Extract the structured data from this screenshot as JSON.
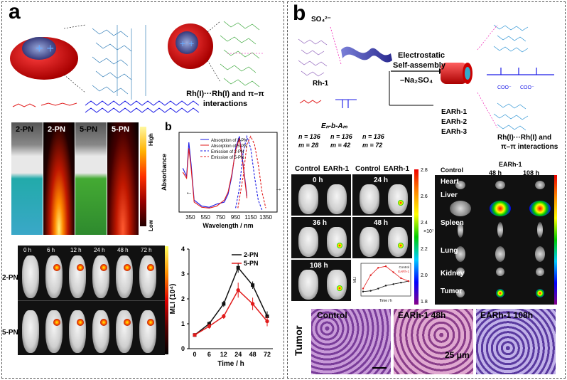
{
  "panels": {
    "a": {
      "label": "a",
      "interaction_text": "Rh(I)···Rh(I) and π–π interactions",
      "vials": [
        "2-PN",
        "2-PN",
        "5-PN",
        "5-PN"
      ],
      "colorbar": {
        "high": "High",
        "low": "Low"
      },
      "mouse_times": [
        "0 h",
        "6 h",
        "12 h",
        "24 h",
        "48 h",
        "72 h"
      ],
      "mouse_rows": [
        "2-PN",
        "5-PN"
      ]
    },
    "b_inner": {
      "label": "b",
      "legend": [
        "Absorption of 2-PN",
        "Absorption of 5-PN",
        "Emission of 2-PN",
        "Emission of 5-PN"
      ],
      "arrow_left": "←",
      "arrow_right": "→"
    },
    "b": {
      "label": "b",
      "rh": "Rh-1",
      "so4": "SO₄²⁻",
      "arrow_top": "Electrostatic",
      "arrow_mid": "Self-assembly",
      "arrow_bottom": "–Na₂SO₄",
      "polymer": "Eₙ-b-Aₘ",
      "n_vals": [
        "n = 136",
        "n = 136",
        "n = 136"
      ],
      "m_vals": [
        "m = 28",
        "m = 42",
        "m = 72"
      ],
      "products": [
        "EARh-1",
        "EARh-2",
        "EARh-3"
      ],
      "interaction_text_1": "Rh(I)···Rh(I) and",
      "interaction_text_2": "π–π interactions",
      "img_headers": [
        "Control",
        "EARh-1",
        "Control",
        "EARh-1"
      ],
      "img_times": [
        "0 h",
        "24 h",
        "36 h",
        "48 h",
        "108 h"
      ],
      "cbar_ticks": [
        "2.8",
        "2.6",
        "2.4",
        "2.2",
        "2.0",
        "1.8"
      ],
      "cbar_unit": "×10⁷",
      "organ_headers": [
        "Control",
        "48 h",
        "108 h"
      ],
      "organ_group": "EARh-1",
      "organs": [
        "Heart",
        "Liver",
        "Spleen",
        "Lung",
        "Kidney",
        "Tumor"
      ],
      "hist_labels": [
        "Control",
        "EARh-1 48h",
        "EARh-1 108h"
      ],
      "tumor_label": "Tumor",
      "scale": "25 μm",
      "inset_legend": [
        "Control",
        "EARh-1"
      ]
    }
  },
  "chart_data": [
    {
      "type": "line",
      "title": "",
      "xlabel": "Wavelength / nm",
      "ylabel": "Absorbance",
      "xlim": [
        200,
        1500
      ],
      "x_ticks": [
        350,
        550,
        750,
        950,
        1150,
        1350
      ],
      "series": [
        {
          "name": "Absorption of 2-PN",
          "style": "solid",
          "color": "#1a1ae6",
          "x": [
            250,
            300,
            330,
            360,
            400,
            500,
            600,
            700,
            800,
            850,
            900,
            950,
            1000,
            1050,
            1100
          ],
          "y": [
            1.1,
            0.9,
            1.75,
            1.2,
            0.3,
            0.15,
            0.12,
            0.2,
            0.25,
            0.45,
            0.9,
            1.6,
            1.9,
            1.2,
            0.4
          ]
        },
        {
          "name": "Absorption of 5-PN",
          "style": "solid",
          "color": "#e11b1b",
          "x": [
            250,
            300,
            330,
            360,
            400,
            500,
            600,
            700,
            800,
            850,
            900,
            950,
            1000,
            1050,
            1100
          ],
          "y": [
            1.0,
            0.85,
            1.6,
            1.1,
            0.25,
            0.12,
            0.1,
            0.15,
            0.3,
            0.5,
            0.95,
            1.55,
            1.85,
            1.15,
            0.35
          ]
        },
        {
          "name": "Emission of 2-PN",
          "style": "dashed",
          "color": "#1a1ae6",
          "x": [
            950,
            1000,
            1050,
            1100,
            1150,
            1200,
            1250,
            1300
          ],
          "y": [
            0.1,
            0.6,
            1.5,
            1.9,
            1.6,
            0.9,
            0.3,
            0.05
          ]
        },
        {
          "name": "Emission of 5-PN",
          "style": "dashed",
          "color": "#e11b1b",
          "x": [
            980,
            1050,
            1100,
            1150,
            1200,
            1250,
            1300,
            1350
          ],
          "y": [
            0.1,
            0.9,
            1.7,
            1.9,
            1.7,
            1.2,
            0.5,
            0.1
          ]
        }
      ]
    },
    {
      "type": "line",
      "title": "",
      "xlabel": "Time / h",
      "ylabel": "MLI (10⁴)",
      "ylim": [
        0,
        4
      ],
      "y_ticks": [
        0,
        1,
        2,
        3,
        4
      ],
      "categories": [
        "0",
        "6",
        "12",
        "24",
        "48",
        "72"
      ],
      "series": [
        {
          "name": "2-PN",
          "color": "#111111",
          "values": [
            0.55,
            1.0,
            1.8,
            3.25,
            2.55,
            1.3
          ],
          "err": [
            0.08,
            0.1,
            0.12,
            0.2,
            0.15,
            0.2
          ]
        },
        {
          "name": "5-PN",
          "color": "#e11b1b",
          "values": [
            0.55,
            0.9,
            1.3,
            2.35,
            1.8,
            1.1
          ],
          "err": [
            0.08,
            0.1,
            0.1,
            0.3,
            0.25,
            0.2
          ]
        }
      ]
    },
    {
      "type": "line",
      "title": "",
      "xlabel": "Time / h",
      "ylabel": "MLI",
      "series": [
        {
          "name": "Control",
          "color": "#111111",
          "values": [
            0.3,
            0.35,
            0.5,
            0.7,
            0.8,
            0.9,
            1.0
          ]
        },
        {
          "name": "EARh-1",
          "color": "#e11b1b",
          "values": [
            0.5,
            1.4,
            1.9,
            2.0,
            1.6,
            1.2,
            1.0
          ]
        }
      ]
    }
  ]
}
